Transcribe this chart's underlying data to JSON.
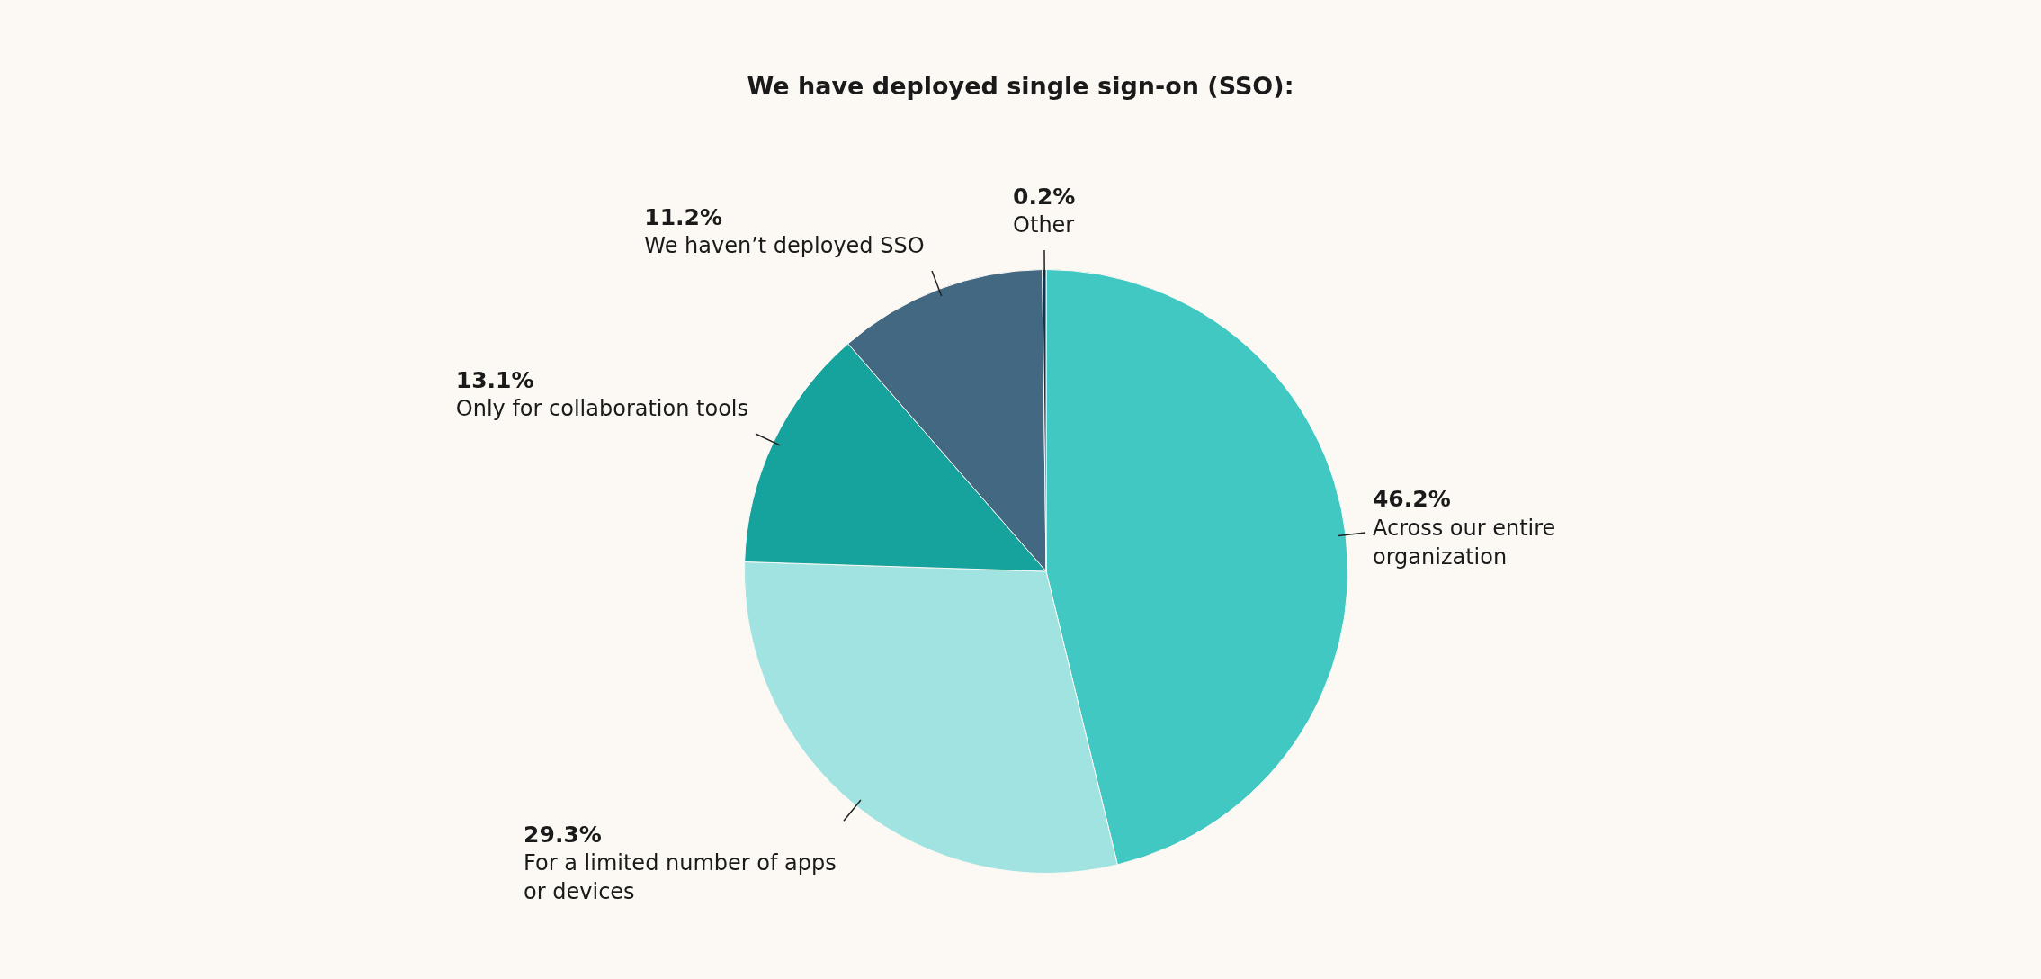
{
  "chart_data": {
    "type": "pie",
    "title": "We have deployed single sign-on (SSO):",
    "categories": [
      "Across our entire organization",
      "For a limited number of apps or devices",
      "Only for collaboration tools",
      "We haven’t deployed SSO",
      "Other"
    ],
    "values": [
      46.2,
      29.3,
      13.1,
      11.2,
      0.2
    ],
    "value_labels": [
      "46.2%",
      "29.3%",
      "13.1%",
      "11.2%",
      "0.2%"
    ],
    "colors": [
      "#42c8c3",
      "#a1e3e1",
      "#16a39e",
      "#436882",
      "#0d3550"
    ],
    "legend": false
  }
}
